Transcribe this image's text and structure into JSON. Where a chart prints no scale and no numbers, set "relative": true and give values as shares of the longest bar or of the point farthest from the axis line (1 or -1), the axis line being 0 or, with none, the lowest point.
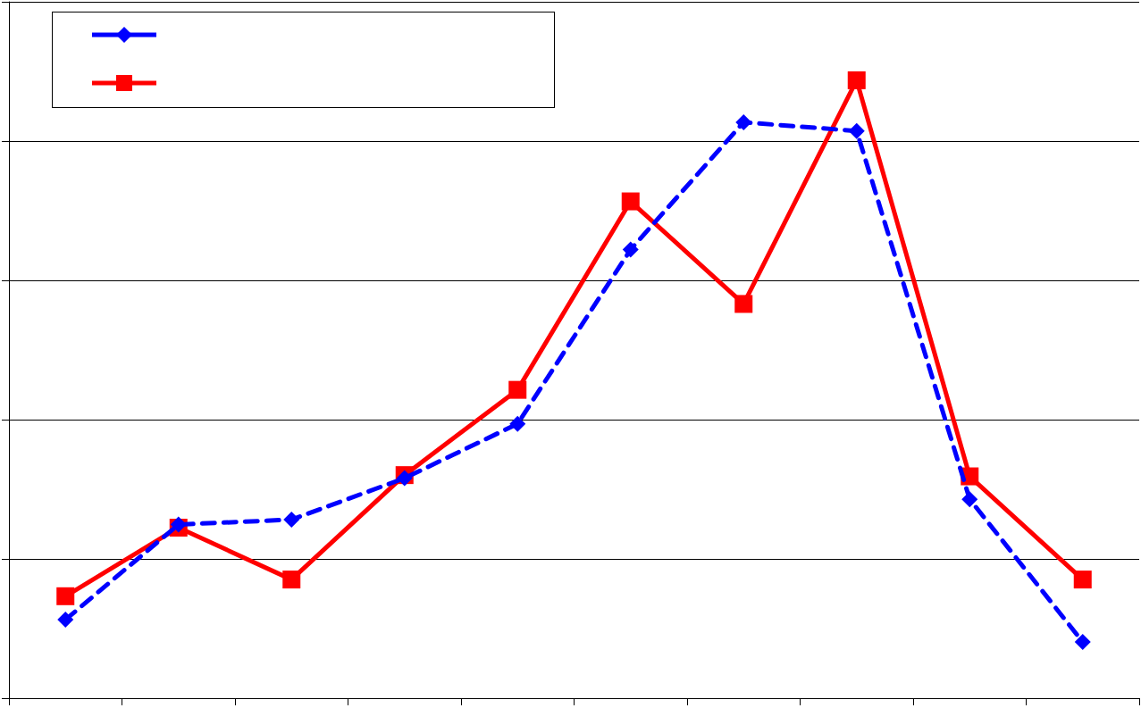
{
  "chart_data": {
    "type": "line",
    "relative": true,
    "categories": [
      null,
      null,
      null,
      null,
      null,
      null,
      null,
      null,
      null,
      null
    ],
    "series": [
      {
        "color": "#0000ff",
        "marker": "diamond",
        "line_style": "dashed",
        "values": [
          0.127,
          0.281,
          0.289,
          0.356,
          0.444,
          0.726,
          0.932,
          0.918,
          0.322,
          0.091
        ]
      },
      {
        "color": "#ff0000",
        "marker": "square",
        "line_style": "solid",
        "values": [
          0.165,
          0.276,
          0.192,
          0.361,
          0.499,
          0.804,
          0.638,
          1,
          0.359,
          0.192
        ]
      }
    ],
    "grid": "y"
  }
}
